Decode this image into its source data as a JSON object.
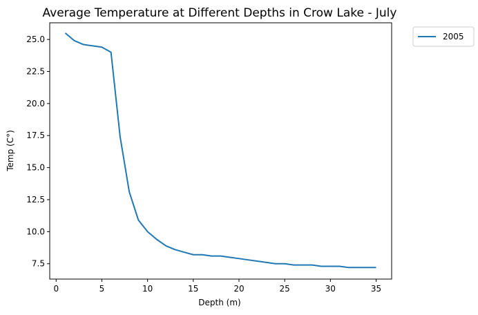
{
  "chart_data": {
    "type": "line",
    "title": "Average Temperature at Different Depths in Crow Lake - July",
    "xlabel": "Depth (m)",
    "ylabel": "Temp (C°)",
    "xlim": [
      -0.7,
      36.7
    ],
    "ylim": [
      6.3,
      26.3
    ],
    "xticks": [
      0,
      5,
      10,
      15,
      20,
      25,
      30,
      35
    ],
    "xtick_labels": [
      "0",
      "5",
      "10",
      "15",
      "20",
      "25",
      "30",
      "35"
    ],
    "yticks": [
      7.5,
      10.0,
      12.5,
      15.0,
      17.5,
      20.0,
      22.5,
      25.0
    ],
    "ytick_labels": [
      "7.5",
      "10.0",
      "12.5",
      "15.0",
      "17.5",
      "20.0",
      "22.5",
      "25.0"
    ],
    "grid": false,
    "legend_position": "outside-top-right",
    "series": [
      {
        "name": "2005",
        "color": "#1f77b4",
        "x": [
          1,
          2,
          3,
          4,
          5,
          6,
          7,
          8,
          9,
          10,
          11,
          12,
          13,
          14,
          15,
          16,
          17,
          18,
          19,
          20,
          21,
          22,
          23,
          24,
          25,
          26,
          27,
          28,
          29,
          30,
          31,
          32,
          33,
          34,
          35
        ],
        "y": [
          25.5,
          24.9,
          24.6,
          24.5,
          24.4,
          24.0,
          17.4,
          13.1,
          10.9,
          10.0,
          9.4,
          8.9,
          8.6,
          8.4,
          8.2,
          8.2,
          8.1,
          8.1,
          8.0,
          7.9,
          7.8,
          7.7,
          7.6,
          7.5,
          7.5,
          7.4,
          7.4,
          7.4,
          7.3,
          7.3,
          7.3,
          7.2,
          7.2,
          7.2,
          7.2
        ]
      }
    ]
  }
}
